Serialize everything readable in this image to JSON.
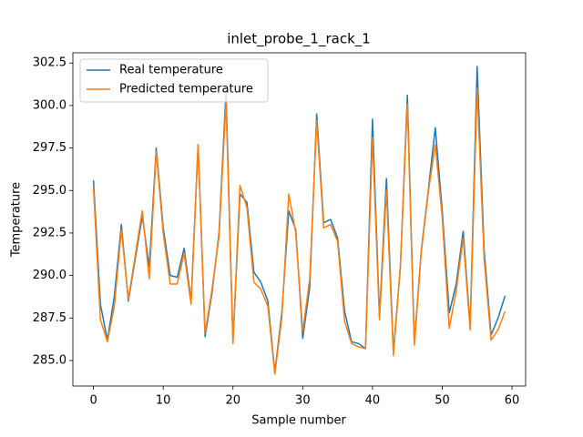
{
  "chart_data": {
    "type": "line",
    "title": "inlet_probe_1_rack_1",
    "x_label": "Sample number",
    "y_label": "Temperature",
    "x": [
      0,
      1,
      2,
      3,
      4,
      5,
      6,
      7,
      8,
      9,
      10,
      11,
      12,
      13,
      14,
      15,
      16,
      17,
      18,
      19,
      20,
      21,
      22,
      23,
      24,
      25,
      26,
      27,
      28,
      29,
      30,
      31,
      32,
      33,
      34,
      35,
      36,
      37,
      38,
      39,
      40,
      41,
      42,
      43,
      44,
      45,
      46,
      47,
      48,
      49,
      50,
      51,
      52,
      53,
      54,
      55,
      56,
      57,
      58,
      59
    ],
    "series": [
      {
        "name": "Real temperature",
        "color": "#1f77b4",
        "values": [
          295.6,
          288.3,
          286.2,
          288.8,
          293.0,
          288.5,
          291.0,
          293.5,
          290.5,
          297.5,
          292.8,
          290.0,
          289.9,
          291.6,
          288.5,
          297.7,
          286.4,
          289.0,
          292.5,
          300.8,
          286.1,
          294.8,
          294.3,
          290.2,
          289.6,
          288.5,
          284.3,
          287.8,
          293.8,
          292.7,
          286.3,
          289.3,
          299.5,
          293.1,
          293.3,
          292.2,
          287.9,
          286.1,
          286.0,
          285.7,
          299.2,
          287.6,
          295.7,
          285.5,
          290.5,
          300.6,
          286.0,
          291.5,
          295.0,
          298.7,
          293.8,
          287.8,
          289.5,
          292.6,
          287.0,
          302.3,
          291.5,
          286.5,
          287.5,
          288.8
        ]
      },
      {
        "name": "Predicted temperature",
        "color": "#ff7f0e",
        "values": [
          295.2,
          287.4,
          286.1,
          288.2,
          292.7,
          288.6,
          291.2,
          293.8,
          289.8,
          297.3,
          292.5,
          289.5,
          289.5,
          291.3,
          288.3,
          297.7,
          286.6,
          289.2,
          292.3,
          300.2,
          286.0,
          295.3,
          294.0,
          289.6,
          289.2,
          288.2,
          284.2,
          287.5,
          294.8,
          292.5,
          286.7,
          289.8,
          299.1,
          292.8,
          293.0,
          292.0,
          287.3,
          286.0,
          285.8,
          285.7,
          298.1,
          287.4,
          295.0,
          285.3,
          290.6,
          300.1,
          285.9,
          291.4,
          294.9,
          297.7,
          293.4,
          286.9,
          289.1,
          292.2,
          286.8,
          301.0,
          291.0,
          286.2,
          286.8,
          287.9
        ]
      }
    ],
    "xlim": [
      -2.95,
      61.95
    ],
    "ylim": [
      283.5,
      303.1
    ],
    "xticks": [
      0,
      10,
      20,
      30,
      40,
      50,
      60
    ],
    "yticks": [
      {
        "value": 285,
        "label": "285.0"
      },
      287.5,
      {
        "value": 290,
        "label": "290.0"
      },
      292.5,
      {
        "value": 295,
        "label": "295.0"
      },
      297.5,
      {
        "value": 300,
        "label": "300.0"
      },
      302.5
    ],
    "legend": "upper left",
    "grid": false
  }
}
